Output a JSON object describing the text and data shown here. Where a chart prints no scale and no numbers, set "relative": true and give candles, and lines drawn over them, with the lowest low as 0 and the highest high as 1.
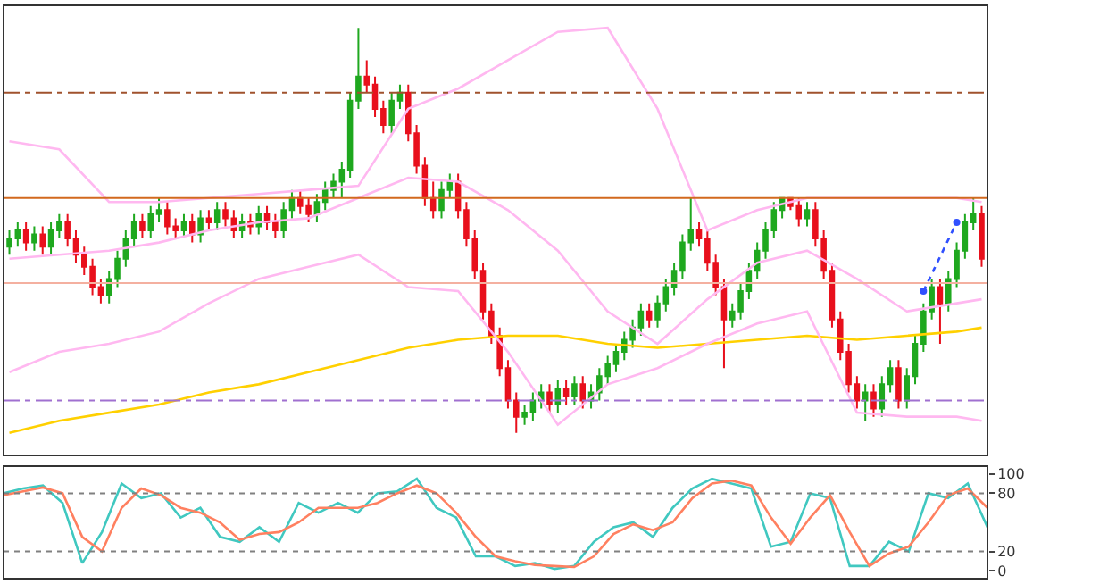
{
  "chart_data": [
    {
      "type": "candlestick",
      "relative": true,
      "categories": [
        null,
        null,
        null,
        null,
        null,
        null,
        null,
        null,
        null,
        null,
        null,
        null,
        null,
        null,
        null,
        null,
        null,
        null,
        null,
        null,
        null,
        null,
        null,
        null,
        null,
        null,
        null,
        null,
        null,
        null,
        null,
        null,
        null,
        null,
        null,
        null,
        null,
        null,
        null,
        null,
        null,
        null,
        null,
        null,
        null,
        null,
        null,
        null,
        null,
        null,
        null,
        null,
        null,
        null,
        null,
        null,
        null,
        null,
        null,
        null,
        null,
        null,
        null,
        null,
        null,
        null,
        null,
        null,
        null,
        null,
        null,
        null,
        null,
        null,
        null,
        null,
        null,
        null,
        null,
        null,
        null,
        null,
        null,
        null,
        null,
        null,
        null,
        null,
        null,
        null,
        null,
        null,
        null,
        null,
        null,
        null,
        null,
        null,
        null,
        null,
        null,
        null,
        null,
        null,
        null,
        null,
        null,
        null,
        null,
        null,
        null,
        null,
        null,
        null,
        null,
        null,
        null,
        null
      ],
      "ohlc": [
        [
          0.46,
          0.5,
          0.44,
          0.48
        ],
        [
          0.48,
          0.52,
          0.46,
          0.5
        ],
        [
          0.5,
          0.52,
          0.45,
          0.47
        ],
        [
          0.47,
          0.51,
          0.45,
          0.49
        ],
        [
          0.49,
          0.51,
          0.44,
          0.46
        ],
        [
          0.46,
          0.52,
          0.44,
          0.5
        ],
        [
          0.5,
          0.54,
          0.48,
          0.52
        ],
        [
          0.52,
          0.54,
          0.46,
          0.48
        ],
        [
          0.48,
          0.5,
          0.42,
          0.44
        ],
        [
          0.44,
          0.46,
          0.39,
          0.41
        ],
        [
          0.41,
          0.43,
          0.34,
          0.36
        ],
        [
          0.36,
          0.38,
          0.32,
          0.34
        ],
        [
          0.34,
          0.4,
          0.32,
          0.38
        ],
        [
          0.38,
          0.45,
          0.36,
          0.43
        ],
        [
          0.43,
          0.5,
          0.41,
          0.48
        ],
        [
          0.48,
          0.54,
          0.46,
          0.52
        ],
        [
          0.52,
          0.54,
          0.48,
          0.5
        ],
        [
          0.5,
          0.56,
          0.48,
          0.54
        ],
        [
          0.54,
          0.58,
          0.52,
          0.55
        ],
        [
          0.55,
          0.57,
          0.49,
          0.51
        ],
        [
          0.51,
          0.53,
          0.48,
          0.5
        ],
        [
          0.5,
          0.54,
          0.48,
          0.52
        ],
        [
          0.52,
          0.54,
          0.47,
          0.49
        ],
        [
          0.49,
          0.55,
          0.47,
          0.53
        ],
        [
          0.53,
          0.55,
          0.5,
          0.52
        ],
        [
          0.52,
          0.57,
          0.5,
          0.55
        ],
        [
          0.55,
          0.57,
          0.51,
          0.53
        ],
        [
          0.53,
          0.55,
          0.48,
          0.5
        ],
        [
          0.5,
          0.54,
          0.48,
          0.52
        ],
        [
          0.52,
          0.54,
          0.49,
          0.51
        ],
        [
          0.51,
          0.56,
          0.49,
          0.54
        ],
        [
          0.54,
          0.56,
          0.5,
          0.52
        ],
        [
          0.52,
          0.54,
          0.48,
          0.5
        ],
        [
          0.5,
          0.57,
          0.48,
          0.55
        ],
        [
          0.55,
          0.6,
          0.53,
          0.58
        ],
        [
          0.58,
          0.6,
          0.54,
          0.56
        ],
        [
          0.56,
          0.58,
          0.52,
          0.54
        ],
        [
          0.54,
          0.59,
          0.52,
          0.57
        ],
        [
          0.57,
          0.62,
          0.55,
          0.6
        ],
        [
          0.6,
          0.64,
          0.58,
          0.62
        ],
        [
          0.62,
          0.67,
          0.58,
          0.65
        ],
        [
          0.65,
          0.84,
          0.63,
          0.82
        ],
        [
          0.82,
          1.0,
          0.8,
          0.88
        ],
        [
          0.88,
          0.92,
          0.84,
          0.86
        ],
        [
          0.86,
          0.88,
          0.78,
          0.8
        ],
        [
          0.8,
          0.82,
          0.74,
          0.76
        ],
        [
          0.76,
          0.84,
          0.74,
          0.82
        ],
        [
          0.82,
          0.86,
          0.8,
          0.84
        ],
        [
          0.84,
          0.86,
          0.72,
          0.74
        ],
        [
          0.74,
          0.76,
          0.64,
          0.66
        ],
        [
          0.66,
          0.68,
          0.56,
          0.58
        ],
        [
          0.58,
          0.62,
          0.53,
          0.55
        ],
        [
          0.55,
          0.62,
          0.53,
          0.6
        ],
        [
          0.6,
          0.64,
          0.58,
          0.62
        ],
        [
          0.62,
          0.64,
          0.53,
          0.55
        ],
        [
          0.55,
          0.57,
          0.46,
          0.48
        ],
        [
          0.48,
          0.5,
          0.38,
          0.4
        ],
        [
          0.4,
          0.42,
          0.28,
          0.3
        ],
        [
          0.3,
          0.32,
          0.22,
          0.24
        ],
        [
          0.24,
          0.26,
          0.14,
          0.16
        ],
        [
          0.16,
          0.18,
          0.06,
          0.08
        ],
        [
          0.08,
          0.1,
          0.0,
          0.04
        ],
        [
          0.04,
          0.07,
          0.02,
          0.05
        ],
        [
          0.05,
          0.1,
          0.03,
          0.08
        ],
        [
          0.08,
          0.12,
          0.06,
          0.1
        ],
        [
          0.1,
          0.12,
          0.05,
          0.07
        ],
        [
          0.07,
          0.13,
          0.05,
          0.11
        ],
        [
          0.11,
          0.13,
          0.07,
          0.09
        ],
        [
          0.09,
          0.14,
          0.07,
          0.12
        ],
        [
          0.12,
          0.14,
          0.06,
          0.08
        ],
        [
          0.08,
          0.12,
          0.06,
          0.1
        ],
        [
          0.1,
          0.16,
          0.08,
          0.14
        ],
        [
          0.14,
          0.19,
          0.12,
          0.17
        ],
        [
          0.17,
          0.22,
          0.15,
          0.2
        ],
        [
          0.2,
          0.25,
          0.18,
          0.23
        ],
        [
          0.23,
          0.28,
          0.21,
          0.26
        ],
        [
          0.26,
          0.32,
          0.24,
          0.3
        ],
        [
          0.3,
          0.32,
          0.26,
          0.28
        ],
        [
          0.28,
          0.34,
          0.26,
          0.32
        ],
        [
          0.32,
          0.38,
          0.3,
          0.36
        ],
        [
          0.36,
          0.42,
          0.34,
          0.4
        ],
        [
          0.4,
          0.49,
          0.38,
          0.47
        ],
        [
          0.47,
          0.58,
          0.45,
          0.5
        ],
        [
          0.5,
          0.52,
          0.46,
          0.48
        ],
        [
          0.48,
          0.5,
          0.4,
          0.42
        ],
        [
          0.42,
          0.44,
          0.34,
          0.36
        ],
        [
          0.36,
          0.38,
          0.16,
          0.28
        ],
        [
          0.28,
          0.32,
          0.26,
          0.3
        ],
        [
          0.3,
          0.37,
          0.28,
          0.35
        ],
        [
          0.35,
          0.42,
          0.33,
          0.4
        ],
        [
          0.4,
          0.47,
          0.38,
          0.45
        ],
        [
          0.45,
          0.52,
          0.43,
          0.5
        ],
        [
          0.5,
          0.57,
          0.48,
          0.55
        ],
        [
          0.55,
          0.58,
          0.53,
          0.58
        ],
        [
          0.58,
          0.58,
          0.55,
          0.56
        ],
        [
          0.56,
          0.58,
          0.51,
          0.53
        ],
        [
          0.53,
          0.57,
          0.51,
          0.55
        ],
        [
          0.55,
          0.57,
          0.46,
          0.48
        ],
        [
          0.48,
          0.5,
          0.38,
          0.4
        ],
        [
          0.4,
          0.42,
          0.26,
          0.28
        ],
        [
          0.28,
          0.3,
          0.18,
          0.2
        ],
        [
          0.2,
          0.22,
          0.1,
          0.12
        ],
        [
          0.12,
          0.14,
          0.06,
          0.08
        ],
        [
          0.08,
          0.12,
          0.03,
          0.1
        ],
        [
          0.1,
          0.12,
          0.04,
          0.06
        ],
        [
          0.06,
          0.14,
          0.04,
          0.12
        ],
        [
          0.12,
          0.18,
          0.1,
          0.16
        ],
        [
          0.16,
          0.18,
          0.06,
          0.08
        ],
        [
          0.08,
          0.16,
          0.06,
          0.14
        ],
        [
          0.14,
          0.24,
          0.12,
          0.22
        ],
        [
          0.22,
          0.32,
          0.2,
          0.3
        ],
        [
          0.3,
          0.38,
          0.28,
          0.36
        ],
        [
          0.36,
          0.38,
          0.22,
          0.32
        ],
        [
          0.32,
          0.4,
          0.3,
          0.38
        ],
        [
          0.38,
          0.47,
          0.36,
          0.45
        ],
        [
          0.45,
          0.54,
          0.43,
          0.52
        ],
        [
          0.52,
          0.58,
          0.5,
          0.54
        ],
        [
          0.54,
          0.56,
          0.41,
          0.43
        ]
      ],
      "series": [
        {
          "type": "line",
          "color": "#ffd000",
          "values": [
            0.0,
            null,
            null,
            null,
            null,
            null,
            0.03,
            null,
            null,
            null,
            null,
            null,
            0.05,
            null,
            null,
            null,
            null,
            null,
            0.07,
            null,
            null,
            null,
            null,
            null,
            0.1,
            null,
            null,
            null,
            null,
            null,
            0.12,
            null,
            null,
            null,
            null,
            null,
            0.15,
            null,
            null,
            null,
            null,
            null,
            0.18,
            null,
            null,
            null,
            null,
            null,
            0.21,
            null,
            null,
            null,
            null,
            null,
            0.23,
            null,
            null,
            null,
            null,
            null,
            0.24,
            null,
            null,
            null,
            null,
            null,
            0.24,
            null,
            null,
            null,
            null,
            null,
            0.22,
            null,
            null,
            null,
            null,
            null,
            0.21,
            null,
            null,
            null,
            null,
            null,
            0.22,
            null,
            null,
            null,
            null,
            null,
            0.23,
            null,
            null,
            null,
            null,
            null,
            0.24,
            null,
            null,
            null,
            null,
            null,
            0.23,
            null,
            null,
            null,
            null,
            null,
            0.24,
            null,
            null,
            null,
            null,
            null,
            0.25,
            null,
            null,
            0.26
          ]
        },
        {
          "type": "line",
          "color": "#ffb8f0",
          "values": [
            0.72,
            null,
            null,
            null,
            null,
            null,
            0.7,
            null,
            null,
            null,
            null,
            null,
            0.57,
            null,
            null,
            null,
            null,
            null,
            0.57,
            null,
            null,
            null,
            null,
            null,
            0.58,
            null,
            null,
            null,
            null,
            null,
            0.59,
            null,
            null,
            null,
            null,
            null,
            0.6,
            null,
            null,
            null,
            null,
            null,
            0.61,
            null,
            null,
            null,
            null,
            null,
            0.8,
            null,
            null,
            null,
            null,
            null,
            0.85,
            null,
            null,
            null,
            null,
            null,
            0.92,
            null,
            null,
            null,
            null,
            null,
            0.99,
            null,
            null,
            null,
            null,
            null,
            1.0,
            null,
            null,
            null,
            null,
            null,
            0.8,
            null,
            null,
            null,
            null,
            null,
            0.5,
            null,
            null,
            null,
            null,
            null,
            0.55,
            null,
            null,
            null,
            null,
            null,
            0.58,
            null,
            null,
            null,
            null,
            null,
            0.58,
            null,
            null,
            null,
            null,
            null,
            0.58,
            null,
            null,
            null,
            null,
            null,
            0.58,
            null,
            null,
            0.57
          ]
        },
        {
          "type": "line",
          "color": "#ffb8f0",
          "values": [
            0.43,
            null,
            null,
            null,
            null,
            null,
            0.44,
            null,
            null,
            null,
            null,
            null,
            0.45,
            null,
            null,
            null,
            null,
            null,
            0.47,
            null,
            null,
            null,
            null,
            null,
            0.5,
            null,
            null,
            null,
            null,
            null,
            0.52,
            null,
            null,
            null,
            null,
            null,
            0.53,
            null,
            null,
            null,
            null,
            null,
            0.58,
            null,
            null,
            null,
            null,
            null,
            0.63,
            null,
            null,
            null,
            null,
            null,
            0.62,
            null,
            null,
            null,
            null,
            null,
            0.55,
            null,
            null,
            null,
            null,
            null,
            0.45,
            null,
            null,
            null,
            null,
            null,
            0.3,
            null,
            null,
            null,
            null,
            null,
            0.22,
            null,
            null,
            null,
            null,
            null,
            0.33,
            null,
            null,
            null,
            null,
            null,
            0.42,
            null,
            null,
            null,
            null,
            null,
            0.45,
            null,
            null,
            null,
            null,
            null,
            0.38,
            null,
            null,
            null,
            null,
            null,
            0.3,
            null,
            null,
            null,
            null,
            null,
            0.32,
            null,
            null,
            0.33
          ]
        },
        {
          "type": "line",
          "color": "#ffb8f0",
          "values": [
            0.15,
            null,
            null,
            null,
            null,
            null,
            0.2,
            null,
            null,
            null,
            null,
            null,
            0.22,
            null,
            null,
            null,
            null,
            null,
            0.25,
            null,
            null,
            null,
            null,
            null,
            0.32,
            null,
            null,
            null,
            null,
            null,
            0.38,
            null,
            null,
            null,
            null,
            null,
            0.41,
            null,
            null,
            null,
            null,
            null,
            0.44,
            null,
            null,
            null,
            null,
            null,
            0.36,
            null,
            null,
            null,
            null,
            null,
            0.35,
            null,
            null,
            null,
            null,
            null,
            0.2,
            null,
            null,
            null,
            null,
            null,
            0.02,
            null,
            null,
            null,
            null,
            null,
            0.12,
            null,
            null,
            null,
            null,
            null,
            0.16,
            null,
            null,
            null,
            null,
            null,
            0.22,
            null,
            null,
            null,
            null,
            null,
            0.27,
            null,
            null,
            null,
            null,
            null,
            0.3,
            null,
            null,
            null,
            null,
            null,
            0.05,
            null,
            null,
            null,
            null,
            null,
            0.04,
            null,
            null,
            null,
            null,
            null,
            0.04,
            null,
            null,
            0.03
          ]
        },
        {
          "type": "line",
          "color": "#3050ff",
          "line_style": "dotted",
          "marker": "circle",
          "values": [
            null,
            null,
            null,
            null,
            null,
            null,
            null,
            null,
            null,
            null,
            null,
            null,
            null,
            null,
            null,
            null,
            null,
            null,
            null,
            null,
            null,
            null,
            null,
            null,
            null,
            null,
            null,
            null,
            null,
            null,
            null,
            null,
            null,
            null,
            null,
            null,
            null,
            null,
            null,
            null,
            null,
            null,
            null,
            null,
            null,
            null,
            null,
            null,
            null,
            null,
            null,
            null,
            null,
            null,
            null,
            null,
            null,
            null,
            null,
            null,
            null,
            null,
            null,
            null,
            null,
            null,
            null,
            null,
            null,
            null,
            null,
            null,
            null,
            null,
            null,
            null,
            null,
            null,
            null,
            null,
            null,
            null,
            null,
            null,
            null,
            null,
            null,
            null,
            null,
            null,
            null,
            null,
            null,
            null,
            null,
            null,
            null,
            null,
            null,
            null,
            null,
            null,
            null,
            null,
            null,
            null,
            null,
            null,
            null,
            null,
            0.35,
            null,
            null,
            null,
            0.52,
            null,
            null,
            null
          ]
        }
      ],
      "ref_lines": [
        {
          "axis": "y",
          "value": 0.84,
          "color": "#a0522d",
          "line_style": "dashed"
        },
        {
          "axis": "y",
          "value": 0.58,
          "color": "#d2691e",
          "line_style": "solid"
        },
        {
          "axis": "y",
          "value": 0.37,
          "color": "#f4b0a0",
          "line_style": "solid"
        },
        {
          "axis": "y",
          "value": 0.08,
          "color": "#a070d0",
          "line_style": "dashed"
        }
      ]
    },
    {
      "type": "line",
      "categories": [
        null,
        null,
        null,
        null,
        null,
        null,
        null,
        null,
        null,
        null,
        null,
        null,
        null,
        null,
        null,
        null,
        null,
        null,
        null,
        null,
        null,
        null,
        null,
        null,
        null,
        null,
        null,
        null,
        null,
        null,
        null,
        null,
        null,
        null,
        null,
        null,
        null,
        null,
        null,
        null,
        null,
        null,
        null,
        null,
        null,
        null,
        null,
        null,
        null,
        null,
        null
      ],
      "ylim": [
        -8,
        108
      ],
      "yticks": [
        0,
        20,
        80,
        100
      ],
      "series": [
        {
          "color": "#40c8c0",
          "values": [
            80,
            85,
            88,
            70,
            8,
            40,
            90,
            75,
            80,
            55,
            65,
            35,
            30,
            45,
            30,
            70,
            60,
            70,
            60,
            80,
            82,
            95,
            65,
            55,
            15,
            15,
            5,
            8,
            2,
            5,
            30,
            45,
            50,
            35,
            65,
            85,
            95,
            90,
            85,
            25,
            30,
            80,
            75,
            5,
            5,
            30,
            20,
            80,
            75,
            90,
            45
          ]
        },
        {
          "color": "#ff8060",
          "values": [
            78,
            82,
            86,
            80,
            35,
            20,
            65,
            85,
            78,
            65,
            60,
            50,
            32,
            38,
            40,
            50,
            65,
            65,
            65,
            70,
            80,
            88,
            80,
            60,
            35,
            15,
            10,
            6,
            5,
            4,
            15,
            38,
            48,
            42,
            50,
            75,
            90,
            93,
            88,
            55,
            28,
            55,
            78,
            40,
            5,
            18,
            25,
            50,
            78,
            85,
            65
          ]
        }
      ],
      "ref_lines": [
        {
          "axis": "y",
          "value": 80,
          "color": "#808080",
          "line_style": "dotted"
        },
        {
          "axis": "y",
          "value": 20,
          "color": "#808080",
          "line_style": "dotted"
        }
      ]
    }
  ]
}
